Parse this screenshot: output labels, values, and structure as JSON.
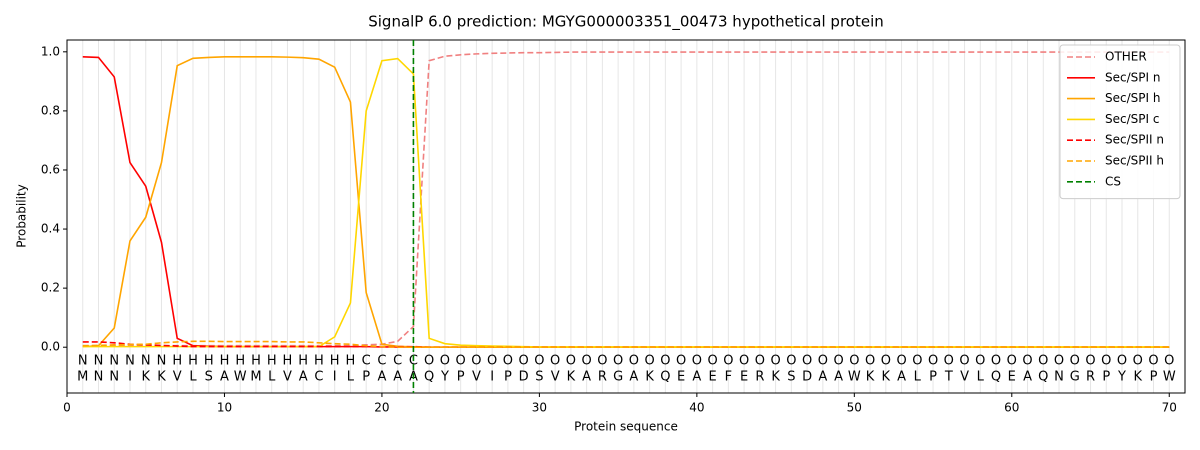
{
  "chart_data": {
    "type": "line",
    "title": "SignalP 6.0 prediction: MGYG000003351_00473 hypothetical protein",
    "x_label": "Protein sequence",
    "y_label": "Probability",
    "xlim": [
      0,
      71
    ],
    "ylim": [
      -0.155,
      1.04
    ],
    "xticks": [
      0,
      10,
      20,
      30,
      40,
      50,
      60,
      70
    ],
    "yticks": [
      {
        "value": 0,
        "label": "0.0"
      },
      {
        "value": 0.2,
        "label": "0.2"
      },
      {
        "value": 0.4,
        "label": "0.4"
      },
      {
        "value": 0.6,
        "label": "0.6"
      },
      {
        "value": 0.8,
        "label": "0.8"
      },
      {
        "value": 1,
        "label": "1.0"
      }
    ],
    "legend": "upper right",
    "x": [
      1,
      2,
      3,
      4,
      5,
      6,
      7,
      8,
      9,
      10,
      11,
      12,
      13,
      14,
      15,
      16,
      17,
      18,
      19,
      20,
      21,
      22,
      23,
      24,
      25,
      26,
      27,
      28,
      29,
      30,
      31,
      32,
      33,
      34,
      35,
      36,
      37,
      38,
      39,
      40,
      41,
      42,
      43,
      44,
      45,
      46,
      47,
      48,
      49,
      50,
      51,
      52,
      53,
      54,
      55,
      56,
      57,
      58,
      59,
      60,
      61,
      62,
      63,
      64,
      65,
      66,
      67,
      68,
      69,
      70
    ],
    "sequence": [
      "M",
      "N",
      "N",
      "I",
      "K",
      "K",
      "V",
      "L",
      "S",
      "A",
      "W",
      "M",
      "L",
      "V",
      "A",
      "C",
      "I",
      "L",
      "P",
      "A",
      "A",
      "A",
      "Q",
      "Y",
      "P",
      "V",
      "I",
      "P",
      "D",
      "S",
      "V",
      "K",
      "A",
      "R",
      "G",
      "A",
      "K",
      "Q",
      "E",
      "A",
      "E",
      "F",
      "E",
      "R",
      "K",
      "S",
      "D",
      "A",
      "A",
      "W",
      "K",
      "K",
      "A",
      "L",
      "P",
      "T",
      "V",
      "L",
      "Q",
      "E",
      "A",
      "Q",
      "N",
      "G",
      "R",
      "P",
      "Y",
      "K",
      "P",
      "W"
    ],
    "regions": [
      "N",
      "N",
      "N",
      "N",
      "N",
      "N",
      "H",
      "H",
      "H",
      "H",
      "H",
      "H",
      "H",
      "H",
      "H",
      "H",
      "H",
      "H",
      "C",
      "C",
      "C",
      "C",
      "O",
      "O",
      "O",
      "O",
      "O",
      "O",
      "O",
      "O",
      "O",
      "O",
      "O",
      "O",
      "O",
      "O",
      "O",
      "O",
      "O",
      "O",
      "O",
      "O",
      "O",
      "O",
      "O",
      "O",
      "O",
      "O",
      "O",
      "O",
      "O",
      "O",
      "O",
      "O",
      "O",
      "O",
      "O",
      "O",
      "O",
      "O",
      "O",
      "O",
      "O",
      "O",
      "O",
      "O",
      "O",
      "O",
      "O",
      "O"
    ],
    "region_colors": {
      "N": "red",
      "H": "orange",
      "C": "gold",
      "O": "gray"
    },
    "series": [
      {
        "name": "OTHER",
        "color": "#f08080",
        "dashed": true,
        "values": [
          0.005,
          0.005,
          0.005,
          0.005,
          0.005,
          0.005,
          0.005,
          0.005,
          0.005,
          0.005,
          0.005,
          0.005,
          0.005,
          0.005,
          0.005,
          0.005,
          0.005,
          0.005,
          0.008,
          0.01,
          0.02,
          0.07,
          0.97,
          0.985,
          0.99,
          0.993,
          0.995,
          0.996,
          0.997,
          0.997,
          0.998,
          0.999,
          0.999,
          0.999,
          0.999,
          0.999,
          0.999,
          0.999,
          0.999,
          0.999,
          0.999,
          0.999,
          0.999,
          0.999,
          0.999,
          0.999,
          0.999,
          0.999,
          0.999,
          0.999,
          0.999,
          0.999,
          0.999,
          0.999,
          0.999,
          0.999,
          0.999,
          0.999,
          0.999,
          0.999,
          0.999,
          0.999,
          0.999,
          0.999,
          0.999,
          0.999,
          0.999,
          0.999,
          0.999,
          0.999
        ]
      },
      {
        "name": "Sec/SPI n",
        "color": "red",
        "dashed": false,
        "values": [
          0.983,
          0.981,
          0.915,
          0.625,
          0.545,
          0.355,
          0.03,
          0.005,
          0.003,
          0.002,
          0.002,
          0.002,
          0.002,
          0.002,
          0.002,
          0.002,
          0.002,
          0.002,
          0.002,
          0.001,
          0.001,
          0.001,
          0,
          0,
          0,
          0,
          0,
          0,
          0,
          0,
          0,
          0,
          0,
          0,
          0,
          0,
          0,
          0,
          0,
          0,
          0,
          0,
          0,
          0,
          0,
          0,
          0,
          0,
          0,
          0,
          0,
          0,
          0,
          0,
          0,
          0,
          0,
          0,
          0,
          0,
          0,
          0,
          0,
          0,
          0,
          0,
          0,
          0,
          0,
          0
        ]
      },
      {
        "name": "Sec/SPI h",
        "color": "orange",
        "dashed": false,
        "values": [
          0.002,
          0.005,
          0.065,
          0.36,
          0.44,
          0.625,
          0.953,
          0.978,
          0.981,
          0.983,
          0.983,
          0.983,
          0.983,
          0.982,
          0.98,
          0.975,
          0.948,
          0.83,
          0.185,
          0.01,
          0.003,
          0.001,
          0,
          0,
          0,
          0,
          0,
          0,
          0,
          0,
          0,
          0,
          0,
          0,
          0,
          0,
          0,
          0,
          0,
          0,
          0,
          0,
          0,
          0,
          0,
          0,
          0,
          0,
          0,
          0,
          0,
          0,
          0,
          0,
          0,
          0,
          0,
          0,
          0,
          0,
          0,
          0,
          0,
          0,
          0,
          0,
          0,
          0,
          0,
          0
        ]
      },
      {
        "name": "Sec/SPI c",
        "color": "gold",
        "dashed": false,
        "values": [
          0.002,
          0.002,
          0.002,
          0.002,
          0.002,
          0.002,
          0.002,
          0.002,
          0.002,
          0.002,
          0.002,
          0.002,
          0.002,
          0.002,
          0.002,
          0.002,
          0.035,
          0.15,
          0.8,
          0.97,
          0.977,
          0.925,
          0.03,
          0.012,
          0.007,
          0.005,
          0.004,
          0.003,
          0.002,
          0.001,
          0.001,
          0.001,
          0.001,
          0.001,
          0.001,
          0.001,
          0.001,
          0.001,
          0.001,
          0.001,
          0.001,
          0.001,
          0.001,
          0.001,
          0.001,
          0.001,
          0.001,
          0.001,
          0.001,
          0.001,
          0.001,
          0.001,
          0.001,
          0.001,
          0.001,
          0.001,
          0.001,
          0.001,
          0.001,
          0.001,
          0.001,
          0.001,
          0.001,
          0.001,
          0.001,
          0.001,
          0.001,
          0.001,
          0.001,
          0.001
        ]
      },
      {
        "name": "Sec/SPII n",
        "color": "red",
        "dashed": true,
        "values": [
          0.018,
          0.018,
          0.015,
          0.01,
          0.008,
          0.006,
          0.004,
          0.002,
          0.002,
          0.002,
          0.002,
          0.002,
          0.002,
          0.002,
          0.002,
          0.002,
          0.002,
          0.002,
          0.002,
          0.002,
          0.002,
          0.002,
          0,
          0,
          0,
          0,
          0,
          0,
          0,
          0,
          0,
          0,
          0,
          0,
          0,
          0,
          0,
          0,
          0,
          0,
          0,
          0,
          0,
          0,
          0,
          0,
          0,
          0,
          0,
          0,
          0,
          0,
          0,
          0,
          0,
          0,
          0,
          0,
          0,
          0,
          0,
          0,
          0,
          0,
          0,
          0,
          0,
          0,
          0,
          0
        ]
      },
      {
        "name": "Sec/SPII h",
        "color": "orange",
        "dashed": true,
        "values": [
          0.005,
          0.006,
          0.008,
          0.009,
          0.01,
          0.015,
          0.018,
          0.02,
          0.02,
          0.019,
          0.019,
          0.019,
          0.019,
          0.018,
          0.018,
          0.015,
          0.012,
          0.01,
          0.005,
          0.002,
          0,
          0,
          0,
          0,
          0,
          0,
          0,
          0,
          0,
          0,
          0,
          0,
          0,
          0,
          0,
          0,
          0,
          0,
          0,
          0,
          0,
          0,
          0,
          0,
          0,
          0,
          0,
          0,
          0,
          0,
          0,
          0,
          0,
          0,
          0,
          0,
          0,
          0,
          0,
          0,
          0,
          0,
          0,
          0,
          0,
          0,
          0,
          0,
          0,
          0
        ]
      }
    ],
    "cleavage_site": {
      "name": "CS",
      "color": "green",
      "x": 22
    }
  }
}
